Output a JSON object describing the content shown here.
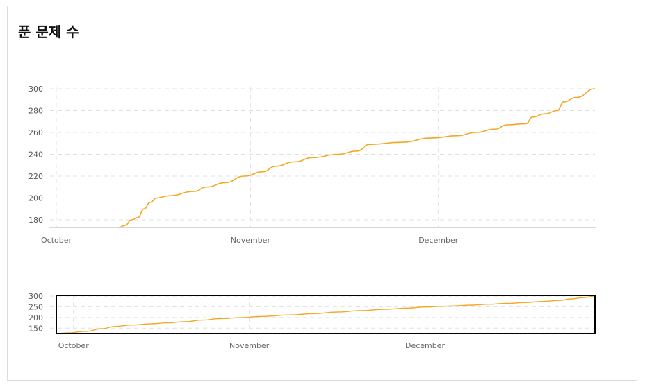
{
  "title": "푼 문제 수",
  "colors": {
    "line": "#f5a623",
    "grid": "#e0e0e0",
    "axis": "#d0d0d0",
    "brush": "#000000"
  },
  "chart_data": [
    {
      "type": "line",
      "title": "푼 문제 수",
      "xlabel": "",
      "ylabel": "",
      "ylim": [
        173,
        300
      ],
      "x_ticks": [
        "October",
        "November",
        "December"
      ],
      "y_ticks": [
        180,
        200,
        220,
        240,
        260,
        280,
        300
      ],
      "grid": true,
      "series": [
        {
          "values": [
            [
              "10-11",
              173
            ],
            [
              "10-12",
              175
            ],
            [
              "10-13",
              180
            ],
            [
              "10-14",
              182
            ],
            [
              "10-15",
              190
            ],
            [
              "10-16",
              196
            ],
            [
              "10-17",
              200
            ],
            [
              "10-19",
              202
            ],
            [
              "10-23",
              206
            ],
            [
              "10-25",
              210
            ],
            [
              "10-28",
              214
            ],
            [
              "10-31",
              220
            ],
            [
              "11-03",
              224
            ],
            [
              "11-05",
              229
            ],
            [
              "11-08",
              233
            ],
            [
              "11-11",
              237
            ],
            [
              "11-15",
              240
            ],
            [
              "11-18",
              243
            ],
            [
              "11-20",
              249
            ],
            [
              "11-25",
              251
            ],
            [
              "11-30",
              255
            ],
            [
              "12-04",
              257
            ],
            [
              "12-07",
              260
            ],
            [
              "12-10",
              263
            ],
            [
              "12-12",
              267
            ],
            [
              "12-15",
              268
            ],
            [
              "12-16",
              274
            ],
            [
              "12-18",
              277
            ],
            [
              "12-20",
              280
            ],
            [
              "12-21",
              288
            ],
            [
              "12-23",
              292
            ],
            [
              "12-26",
              300
            ]
          ]
        }
      ]
    },
    {
      "type": "line",
      "title": "",
      "ylim": [
        125,
        300
      ],
      "x_ticks": [
        "October",
        "November",
        "December"
      ],
      "y_ticks": [
        150,
        200,
        250,
        300
      ],
      "grid": true,
      "brush": "full range selected",
      "series": [
        {
          "values": [
            [
              "09-29",
              125
            ],
            [
              "10-01",
              128
            ],
            [
              "10-04",
              135
            ],
            [
              "10-07",
              148
            ],
            [
              "10-09",
              158
            ],
            [
              "10-12",
              165
            ],
            [
              "10-15",
              170
            ],
            [
              "10-18",
              175
            ],
            [
              "10-21",
              180
            ],
            [
              "10-24",
              188
            ],
            [
              "10-27",
              195
            ],
            [
              "10-31",
              200
            ],
            [
              "11-03",
              205
            ],
            [
              "11-08",
              212
            ],
            [
              "11-12",
              218
            ],
            [
              "11-16",
              225
            ],
            [
              "11-20",
              232
            ],
            [
              "11-24",
              238
            ],
            [
              "11-28",
              244
            ],
            [
              "12-01",
              249
            ],
            [
              "12-05",
              253
            ],
            [
              "12-09",
              258
            ],
            [
              "12-12",
              262
            ],
            [
              "12-15",
              266
            ],
            [
              "12-18",
              270
            ],
            [
              "12-21",
              275
            ],
            [
              "12-24",
              280
            ],
            [
              "12-26",
              287
            ],
            [
              "12-28",
              293
            ],
            [
              "12-30",
              300
            ]
          ]
        }
      ]
    }
  ]
}
